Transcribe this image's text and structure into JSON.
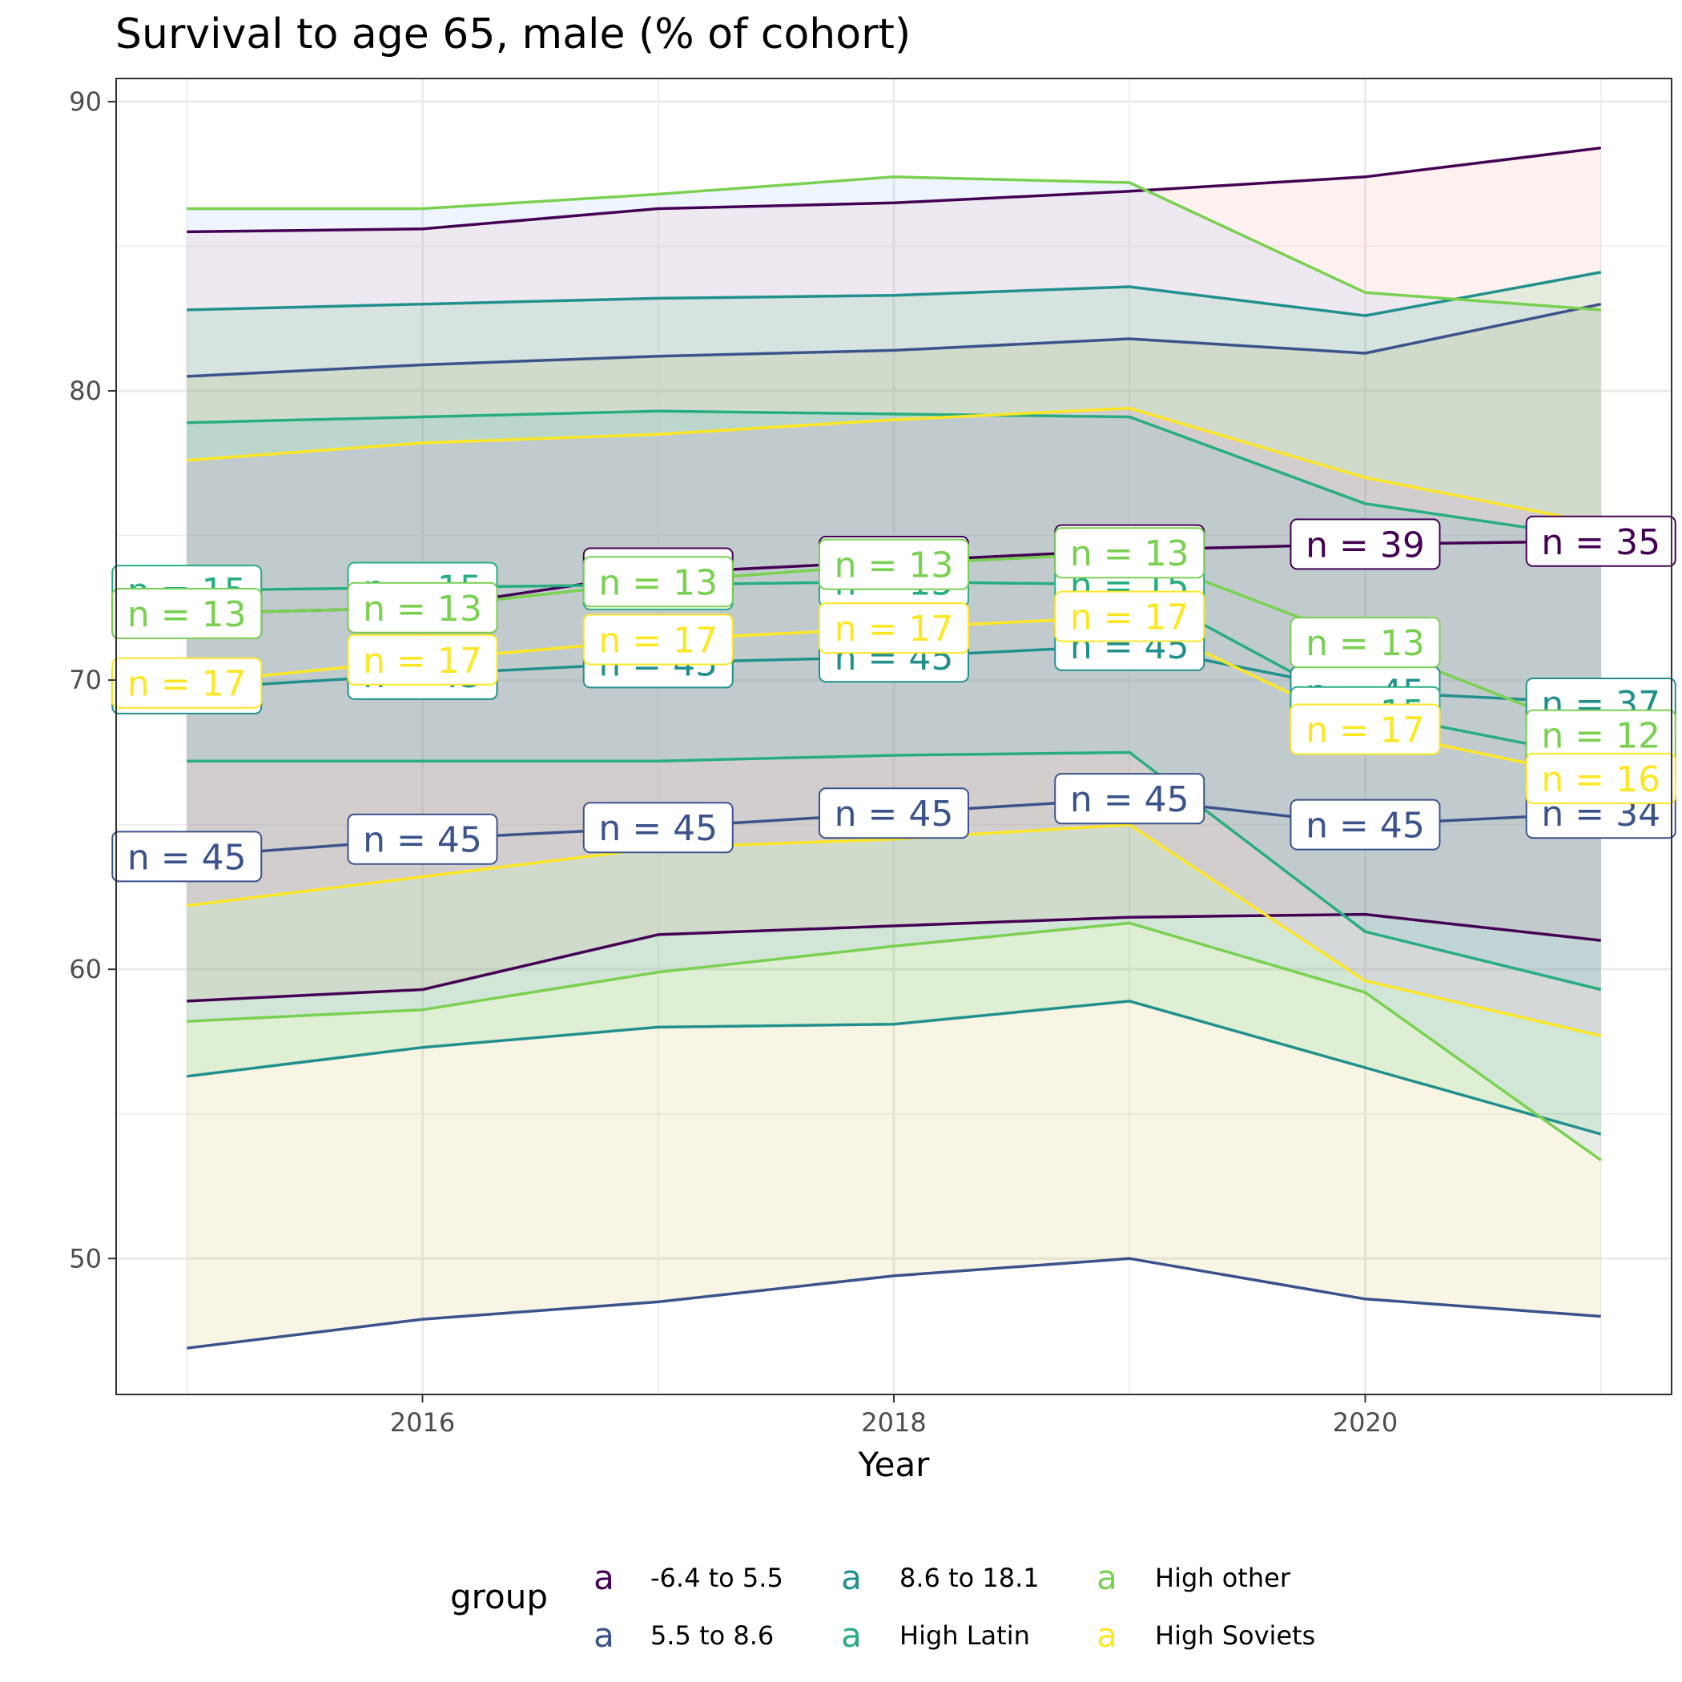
{
  "chart_data": {
    "type": "line",
    "title": "Survival to age 65, male (% of cohort)",
    "xlabel": "Year",
    "ylabel": "",
    "xlim": [
      2014.7,
      2021.3
    ],
    "ylim": [
      45.3,
      90.8
    ],
    "x_ticks": [
      2016,
      2018,
      2020
    ],
    "y_ticks": [
      50,
      60,
      70,
      80,
      90
    ],
    "grid": true,
    "x": [
      2015,
      2016,
      2017,
      2018,
      2019,
      2020,
      2021
    ],
    "legend": {
      "title": "group",
      "position": "bottom",
      "key_glyph": "a"
    },
    "series": [
      {
        "name": "-6.4 to 5.5",
        "color": "#440154",
        "upper": [
          85.5,
          85.6,
          86.3,
          86.5,
          86.9,
          87.4,
          88.4
        ],
        "mean": [
          72.3,
          72.5,
          73.7,
          74.1,
          74.5,
          74.7,
          74.8
        ],
        "lower": [
          58.9,
          59.3,
          61.2,
          61.5,
          61.8,
          61.9,
          61.0
        ],
        "n": [
          "n = 45",
          "n = 45",
          "n = 45",
          "n = 45",
          "n = 45",
          "n = 39",
          "n = 35"
        ]
      },
      {
        "name": "5.5 to 8.6",
        "color": "#3B528B",
        "upper": [
          80.5,
          80.9,
          81.2,
          81.4,
          81.8,
          81.3,
          83.0
        ],
        "mean": [
          63.9,
          64.5,
          64.9,
          65.4,
          65.9,
          65.0,
          65.4
        ],
        "lower": [
          46.9,
          47.9,
          48.5,
          49.4,
          50.0,
          48.6,
          48.0
        ],
        "n": [
          "n = 45",
          "n = 45",
          "n = 45",
          "n = 45",
          "n = 45",
          "n = 45",
          "n = 34"
        ]
      },
      {
        "name": "8.6 to 18.1",
        "color": "#21908C",
        "upper": [
          82.8,
          83.0,
          83.2,
          83.3,
          83.6,
          82.6,
          84.1
        ],
        "mean": [
          69.7,
          70.2,
          70.6,
          70.8,
          71.2,
          69.6,
          69.2
        ],
        "lower": [
          56.3,
          57.3,
          58.0,
          58.1,
          58.9,
          56.6,
          54.3
        ],
        "n": [
          "n = 45",
          "n = 45",
          "n = 45",
          "n = 45",
          "n = 45",
          "n = 45",
          "n = 37"
        ]
      },
      {
        "name": "High Latin",
        "color": "#27AD81",
        "upper": [
          78.9,
          79.1,
          79.3,
          79.2,
          79.1,
          76.1,
          74.9
        ],
        "mean": [
          73.1,
          73.2,
          73.3,
          73.4,
          73.3,
          68.9,
          67.3
        ],
        "lower": [
          67.2,
          67.2,
          67.2,
          67.4,
          67.5,
          61.3,
          59.3
        ],
        "n": [
          "n = 15",
          "n = 15",
          "n = 15",
          "n = 15",
          "n = 15",
          "n = 15",
          "n = 15"
        ]
      },
      {
        "name": "High other",
        "color": "#7AD151",
        "upper": [
          86.3,
          86.3,
          86.8,
          87.4,
          87.2,
          83.4,
          82.8
        ],
        "mean": [
          72.3,
          72.5,
          73.4,
          74.0,
          74.4,
          71.3,
          68.1
        ],
        "lower": [
          58.2,
          58.6,
          59.9,
          60.8,
          61.6,
          59.2,
          53.4
        ],
        "n": [
          "n = 13",
          "n = 13",
          "n = 13",
          "n = 13",
          "n = 13",
          "n = 13",
          "n = 12"
        ]
      },
      {
        "name": "High Soviets",
        "color": "#FDE725",
        "upper": [
          77.6,
          78.2,
          78.5,
          79.0,
          79.4,
          77.0,
          75.4
        ],
        "mean": [
          69.9,
          70.7,
          71.4,
          71.8,
          72.2,
          68.3,
          66.6
        ],
        "lower": [
          62.2,
          63.2,
          64.2,
          64.5,
          65.0,
          59.6,
          57.7
        ],
        "n": [
          "n = 17",
          "n = 17",
          "n = 17",
          "n = 17",
          "n = 17",
          "n = 17",
          "n = 16"
        ]
      }
    ]
  }
}
